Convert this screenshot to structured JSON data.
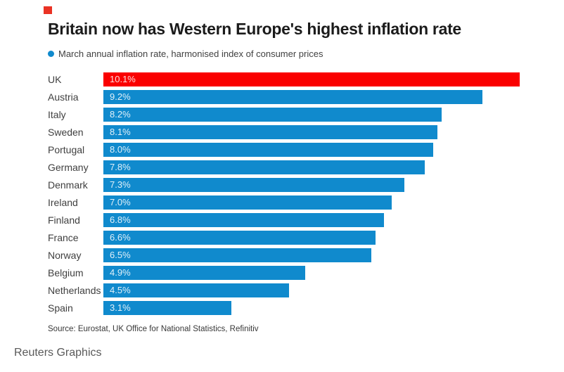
{
  "page": {
    "logo_color": "#ea3224",
    "background_color": "#ffffff"
  },
  "header": {
    "title": "Britain now has Western Europe's highest inflation rate",
    "legend_label": "March annual inflation rate, harmonised index of consumer prices"
  },
  "chart_data": {
    "type": "bar",
    "orientation": "horizontal",
    "title": "Britain now has Western Europe's highest inflation rate",
    "legend": "March annual inflation rate, harmonised index of consumer prices",
    "legend_position": "top-left",
    "grid": false,
    "categories": [
      "UK",
      "Austria",
      "Italy",
      "Sweden",
      "Portugal",
      "Germany",
      "Denmark",
      "Ireland",
      "Finland",
      "France",
      "Norway",
      "Belgium",
      "Netherlands",
      "Spain"
    ],
    "values": [
      10.1,
      9.2,
      8.2,
      8.1,
      8.0,
      7.8,
      7.3,
      7.0,
      6.8,
      6.6,
      6.5,
      4.9,
      4.5,
      3.1
    ],
    "value_labels": [
      "10.1%",
      "9.2%",
      "8.2%",
      "8.1%",
      "8.0%",
      "7.8%",
      "7.3%",
      "7.0%",
      "6.8%",
      "6.6%",
      "6.5%",
      "4.9%",
      "4.5%",
      "3.1%"
    ],
    "axis_max": 10.1,
    "xlim": [
      0,
      10.1
    ],
    "bar_color": "#108acd",
    "highlight_color": "#fa0000",
    "highlight_index": 0,
    "value_label_position": "inside-left"
  },
  "footer": {
    "source": "Source: Eurostat, UK Office for National Statistics, Refinitiv",
    "credit": "Reuters Graphics"
  }
}
